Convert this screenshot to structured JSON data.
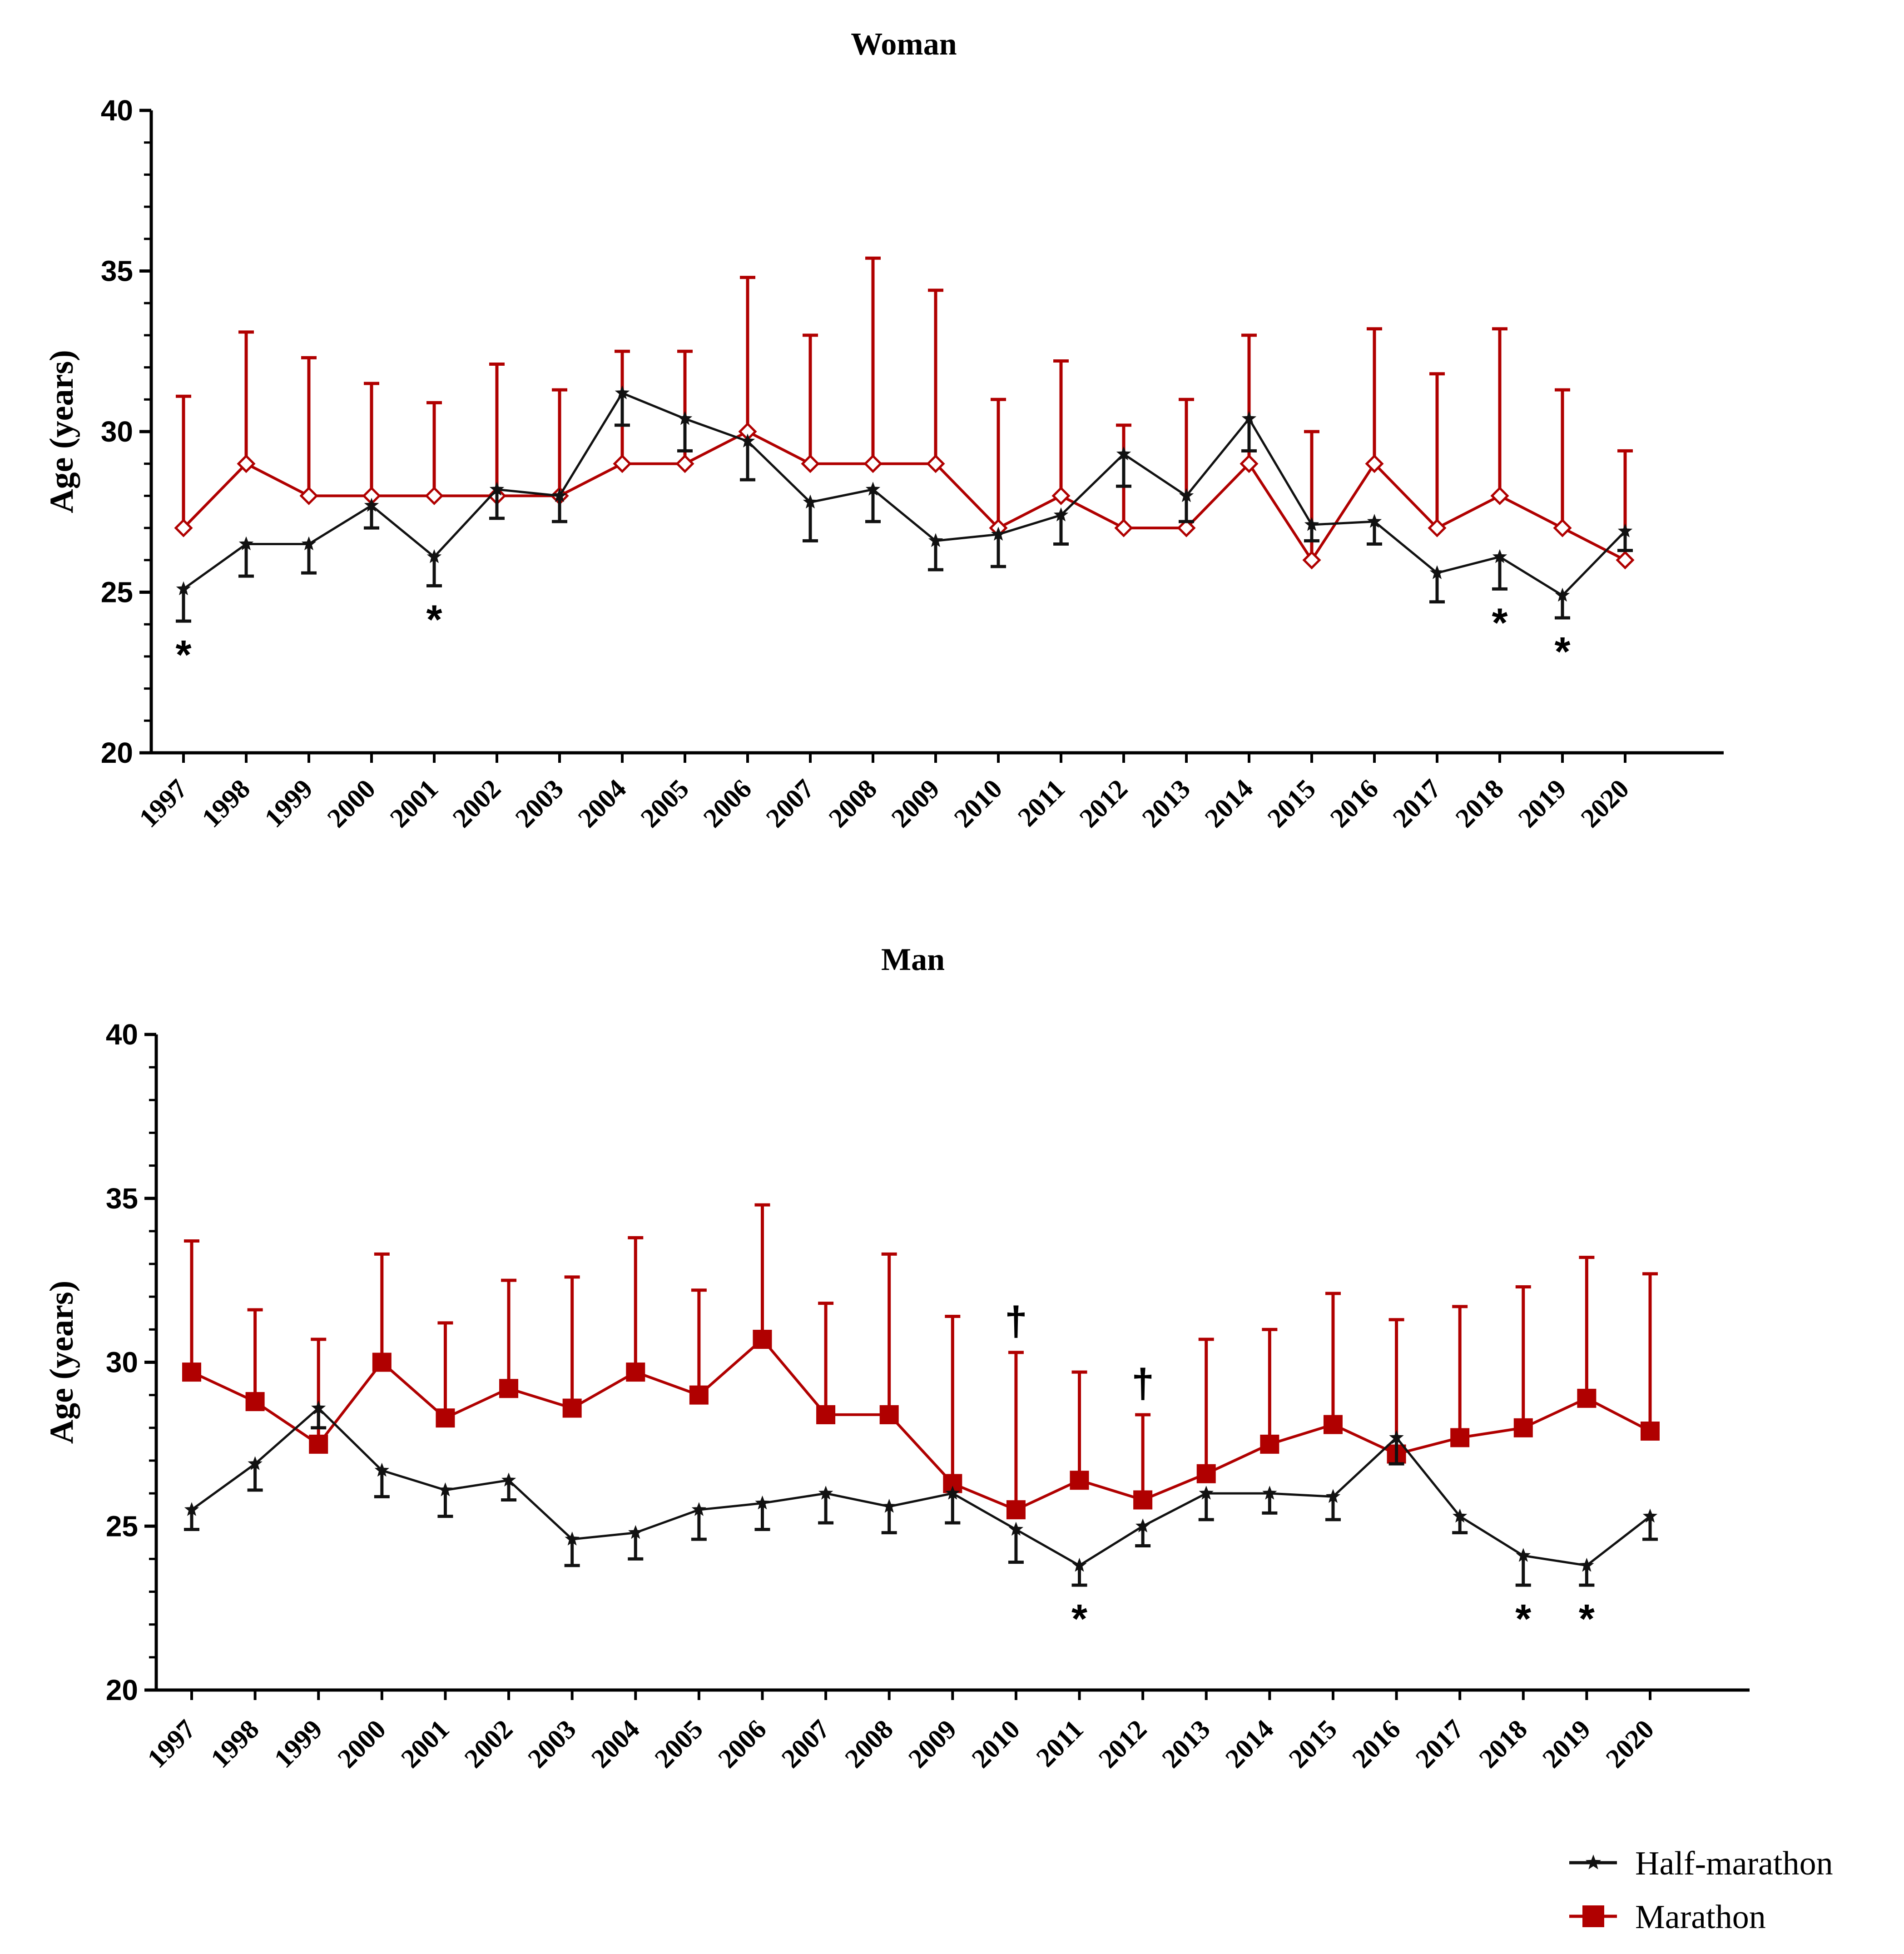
{
  "colors": {
    "half": "#111111",
    "marathon": "#b00000"
  },
  "legend": {
    "half": "Half-marathon",
    "marathon": "Marathon"
  },
  "chart_data": [
    {
      "type": "line",
      "title": "Woman",
      "ylabel": "Age  (years)",
      "xlabel": "",
      "ylim": [
        20,
        40
      ],
      "yticks": [
        20,
        25,
        30,
        35,
        40
      ],
      "categories": [
        "1997",
        "1998",
        "1999",
        "2000",
        "2001",
        "2002",
        "2003",
        "2004",
        "2005",
        "2006",
        "2007",
        "2008",
        "2009",
        "2010",
        "2011",
        "2012",
        "2013",
        "2014",
        "2015",
        "2016",
        "2017",
        "2018",
        "2019",
        "2020"
      ],
      "marker_style": {
        "half": "star",
        "marathon": "open-diamond"
      },
      "series": [
        {
          "key": "half",
          "name": "Half-marathon",
          "values": [
            25.1,
            26.5,
            26.5,
            27.7,
            26.1,
            28.2,
            28.0,
            31.2,
            30.4,
            29.7,
            27.8,
            28.2,
            26.6,
            26.8,
            27.4,
            29.3,
            28.0,
            30.4,
            27.1,
            27.2,
            25.6,
            26.1,
            24.9,
            26.9
          ],
          "err": [
            1.0,
            1.0,
            0.9,
            0.7,
            0.9,
            0.9,
            0.8,
            1.0,
            1.0,
            1.2,
            1.2,
            1.0,
            0.9,
            1.0,
            0.9,
            1.0,
            0.8,
            1.0,
            0.5,
            0.7,
            0.9,
            1.0,
            0.7,
            0.6
          ],
          "err_dir": "down",
          "annotations": [
            {
              "category": "1997",
              "label": "*"
            },
            {
              "category": "2001",
              "label": "*"
            },
            {
              "category": "2018",
              "label": "*"
            },
            {
              "category": "2019",
              "label": "*"
            }
          ]
        },
        {
          "key": "marathon",
          "name": "Marathon",
          "values": [
            27,
            29,
            28,
            28,
            28,
            28,
            28,
            29,
            29,
            30,
            29,
            29,
            29,
            27,
            28,
            27,
            27,
            29,
            26,
            29,
            27,
            28,
            27,
            26
          ],
          "err": [
            4.1,
            4.1,
            4.3,
            3.5,
            2.9,
            4.1,
            3.3,
            3.5,
            3.5,
            4.8,
            4.0,
            6.4,
            5.4,
            4.0,
            4.2,
            3.2,
            4.0,
            4.0,
            4.0,
            4.2,
            4.8,
            5.2,
            4.3,
            3.4
          ],
          "err_dir": "up",
          "annotations": []
        }
      ]
    },
    {
      "type": "line",
      "title": "Man",
      "ylabel": "Age  (years)",
      "xlabel": "",
      "ylim": [
        20,
        40
      ],
      "yticks": [
        20,
        25,
        30,
        35,
        40
      ],
      "categories": [
        "1997",
        "1998",
        "1999",
        "2000",
        "2001",
        "2002",
        "2003",
        "2004",
        "2005",
        "2006",
        "2007",
        "2008",
        "2009",
        "2010",
        "2011",
        "2012",
        "2013",
        "2014",
        "2015",
        "2016",
        "2017",
        "2018",
        "2019",
        "2020"
      ],
      "marker_style": {
        "half": "star",
        "marathon": "filled-square"
      },
      "series": [
        {
          "key": "half",
          "name": "Half-marathon",
          "values": [
            25.5,
            26.9,
            28.6,
            26.7,
            26.1,
            26.4,
            24.6,
            24.8,
            25.5,
            25.7,
            26.0,
            25.6,
            26.0,
            24.9,
            23.8,
            25.0,
            26.0,
            26.0,
            25.9,
            27.7,
            25.3,
            24.1,
            23.8,
            25.3
          ],
          "err": [
            0.6,
            0.8,
            0.6,
            0.8,
            0.8,
            0.6,
            0.8,
            0.8,
            0.9,
            0.8,
            0.9,
            0.8,
            0.9,
            1.0,
            0.6,
            0.6,
            0.8,
            0.6,
            0.7,
            0.8,
            0.5,
            0.9,
            0.6,
            0.7
          ],
          "err_dir": "down",
          "annotations": [
            {
              "category": "2011",
              "label": "*"
            },
            {
              "category": "2018",
              "label": "*"
            },
            {
              "category": "2019",
              "label": "*"
            }
          ]
        },
        {
          "key": "marathon",
          "name": "Marathon",
          "values": [
            29.7,
            28.8,
            27.5,
            30.0,
            28.3,
            29.2,
            28.6,
            29.7,
            29.0,
            30.7,
            28.4,
            28.4,
            26.3,
            25.5,
            26.4,
            25.8,
            26.6,
            27.5,
            28.1,
            27.2,
            27.7,
            28.0,
            28.9,
            27.9
          ],
          "err": [
            4.0,
            2.8,
            3.2,
            3.3,
            2.9,
            3.3,
            4.0,
            4.1,
            3.2,
            4.1,
            3.4,
            4.9,
            5.1,
            4.8,
            3.3,
            2.6,
            4.1,
            3.5,
            4.0,
            4.1,
            4.0,
            4.3,
            4.3,
            4.8
          ],
          "err_dir": "up",
          "annotations": [
            {
              "category": "2010",
              "label": "†"
            },
            {
              "category": "2012",
              "label": "†"
            }
          ]
        }
      ]
    }
  ]
}
